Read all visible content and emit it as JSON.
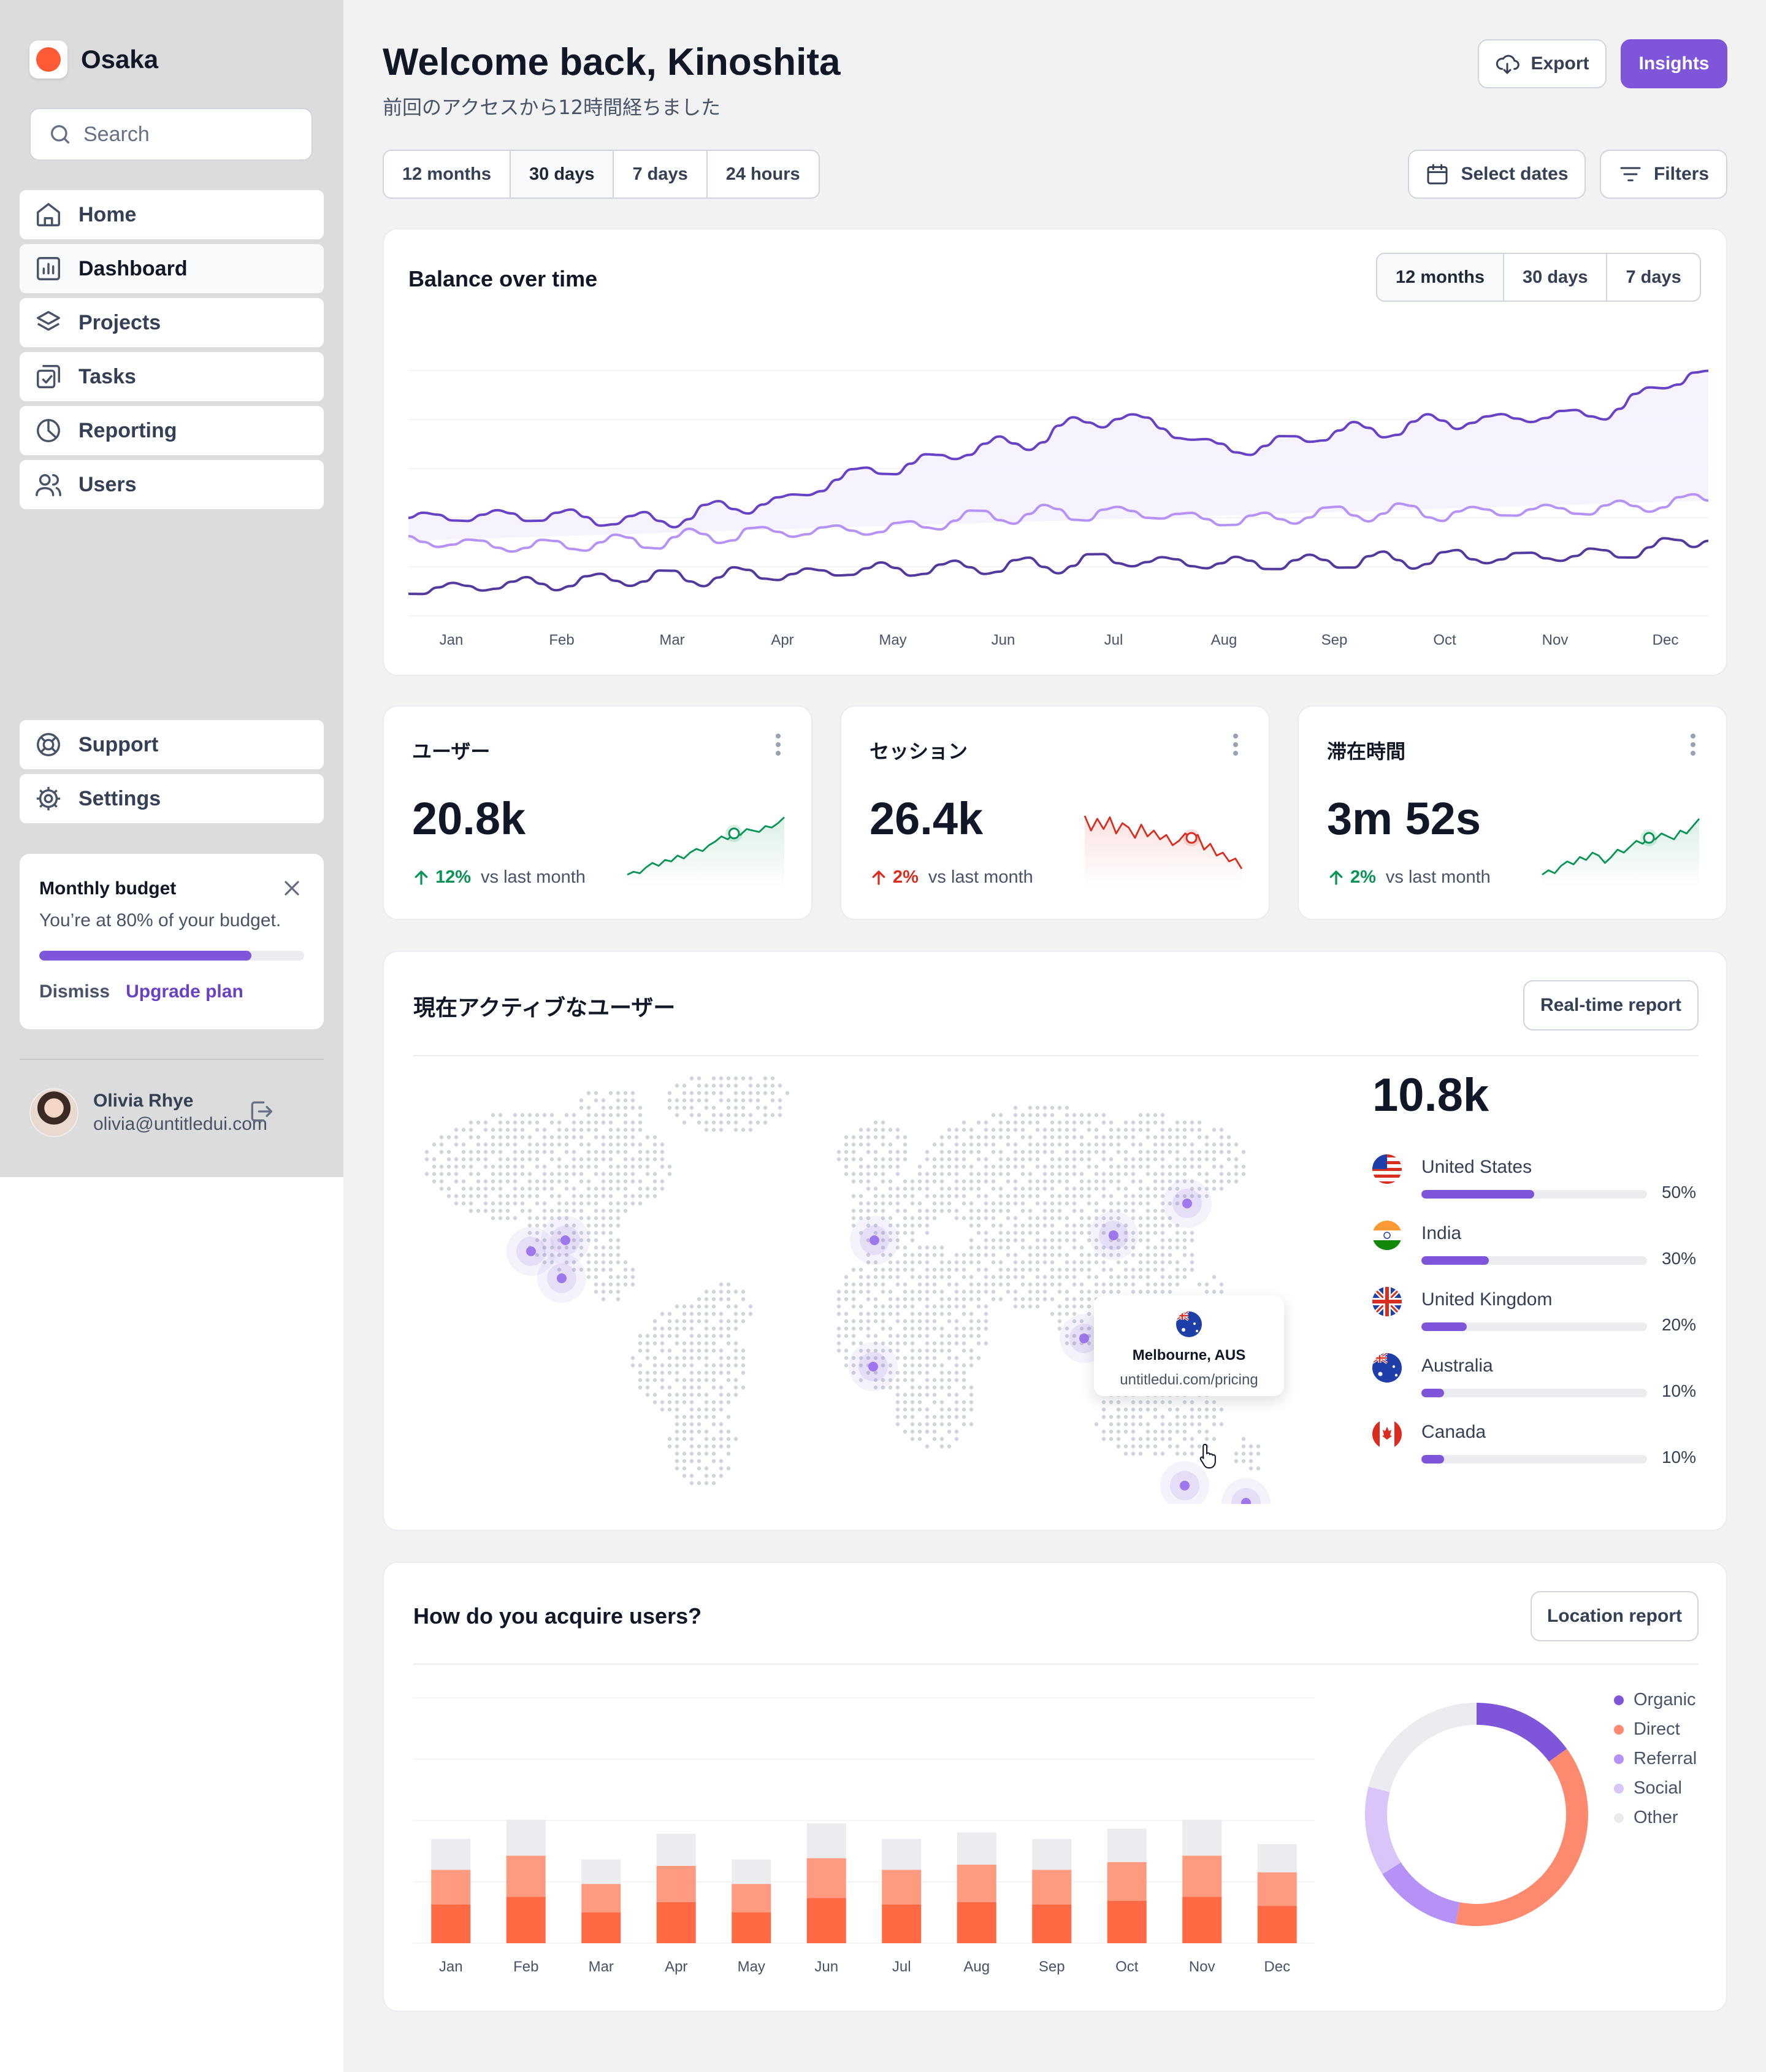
{
  "app": {
    "name": "Osaka"
  },
  "search": {
    "placeholder": "Search"
  },
  "nav": {
    "items": [
      {
        "label": "Home",
        "icon": "home-icon"
      },
      {
        "label": "Dashboard",
        "icon": "bar-chart-icon"
      },
      {
        "label": "Projects",
        "icon": "layers-icon"
      },
      {
        "label": "Tasks",
        "icon": "check-square-icon"
      },
      {
        "label": "Reporting",
        "icon": "pie-chart-icon"
      },
      {
        "label": "Users",
        "icon": "users-icon"
      }
    ],
    "footer": [
      {
        "label": "Support",
        "icon": "life-buoy-icon"
      },
      {
        "label": "Settings",
        "icon": "settings-icon"
      }
    ]
  },
  "budget": {
    "title": "Monthly budget",
    "text": "You’re at 80% of your budget.",
    "progress": 0.8,
    "dismiss": "Dismiss",
    "upgrade": "Upgrade plan"
  },
  "user": {
    "name": "Olivia Rhye",
    "email": "olivia@untitledui.com"
  },
  "header": {
    "title": "Welcome back, Kinoshita",
    "subtitle": "前回のアクセスから12時間経ちました",
    "export": "Export",
    "insights": "Insights"
  },
  "range": {
    "options": [
      "12 months",
      "30 days",
      "7 days",
      "24 hours"
    ],
    "selected": "30 days",
    "select_dates": "Select dates",
    "filters": "Filters"
  },
  "balance": {
    "title": "Balance over time",
    "ranges": [
      "12 months",
      "30 days",
      "7 days"
    ],
    "selected": "12 months"
  },
  "chart_data": [
    {
      "type": "line",
      "x": [
        "Jan",
        "Feb",
        "Mar",
        "Apr",
        "May",
        "Jun",
        "Jul",
        "Aug",
        "Sep",
        "Oct",
        "Nov",
        "Dec"
      ],
      "ylim": [
        0,
        10
      ],
      "grid": true,
      "series": [
        {
          "values": [
            3.4,
            3.5,
            3.3,
            3.9,
            5.1,
            5.9,
            6.9,
            5.8,
            6.4,
            6.8,
            7.0,
            8.5
          ],
          "color": "#6941c6"
        },
        {
          "values": [
            2.6,
            2.4,
            2.6,
            2.9,
            3.0,
            3.5,
            3.6,
            3.3,
            3.6,
            3.6,
            3.7,
            4.0
          ],
          "color": "#b692f6"
        },
        {
          "values": [
            0.9,
            1.1,
            1.3,
            1.4,
            1.6,
            1.7,
            1.9,
            1.8,
            1.9,
            2.0,
            2.1,
            2.6
          ],
          "color": "#53389e"
        }
      ]
    },
    {
      "type": "bar",
      "stacked": true,
      "categories": [
        "Jan",
        "Feb",
        "Mar",
        "Apr",
        "May",
        "Jun",
        "Jul",
        "Aug",
        "Sep",
        "Oct",
        "Nov",
        "Dec"
      ],
      "ylim": [
        0,
        100
      ],
      "grid": true,
      "series": [
        {
          "name": "Organic",
          "color": "#ff6a44",
          "values": [
            30,
            36,
            24,
            32,
            24,
            35,
            30,
            32,
            30,
            33,
            36,
            29
          ]
        },
        {
          "name": "Direct",
          "color": "#fd9a80",
          "values": [
            27,
            32,
            22,
            28,
            22,
            31,
            27,
            29,
            27,
            30,
            32,
            26
          ]
        },
        {
          "name": "Other",
          "color": "#eaecf0",
          "values": [
            24,
            28,
            19,
            25,
            19,
            27,
            24,
            25,
            24,
            26,
            28,
            22
          ]
        }
      ]
    },
    {
      "type": "pie",
      "categories": [
        "Organic",
        "Direct",
        "Referral",
        "Social",
        "Other"
      ],
      "values": [
        15,
        38,
        13,
        13,
        21
      ],
      "colors": [
        "#7f56d9",
        "#fd8a6e",
        "#b692f6",
        "#d9c5fa",
        "#eaecf0"
      ],
      "legend": "right"
    }
  ],
  "metrics": [
    {
      "title": "ユーザー",
      "value": "20.8k",
      "change": "12%",
      "trend": "up",
      "vs": "vs last month",
      "color": "#079455",
      "spark": [
        10,
        14,
        12,
        20,
        26,
        22,
        30,
        28,
        36,
        32,
        40,
        45,
        42,
        50,
        55,
        62,
        58,
        66,
        64,
        72,
        70,
        68,
        76,
        74,
        80,
        88
      ]
    },
    {
      "title": "セッション",
      "value": "26.4k",
      "change": "2%",
      "trend": "down",
      "vs": "vs last month",
      "color": "#d92d20",
      "spark": [
        90,
        70,
        86,
        72,
        88,
        66,
        80,
        74,
        60,
        78,
        62,
        70,
        58,
        64,
        50,
        56,
        66,
        60,
        64,
        44,
        52,
        36,
        40,
        28,
        32,
        18
      ]
    },
    {
      "title": "滞在時間",
      "value": "3m 52s",
      "change": "2%",
      "trend": "up",
      "vs": "vs last month",
      "color": "#079455",
      "spark": [
        10,
        16,
        12,
        22,
        28,
        24,
        34,
        30,
        40,
        36,
        26,
        34,
        44,
        40,
        48,
        56,
        52,
        60,
        58,
        66,
        62,
        58,
        70,
        66,
        76,
        86
      ]
    }
  ],
  "active_users": {
    "title": "現在アクティブなユーザー",
    "report_button": "Real-time report",
    "total": "10.8k",
    "countries": [
      {
        "name": "United States",
        "pct": "50%",
        "value": 0.5,
        "flag": "us-flag-icon"
      },
      {
        "name": "India",
        "pct": "30%",
        "value": 0.3,
        "flag": "india-flag-icon"
      },
      {
        "name": "United Kingdom",
        "pct": "20%",
        "value": 0.2,
        "flag": "uk-flag-icon"
      },
      {
        "name": "Australia",
        "pct": "10%",
        "value": 0.1,
        "flag": "australia-flag-icon"
      },
      {
        "name": "Canada",
        "pct": "10%",
        "value": 0.1,
        "flag": "canada-flag-icon"
      }
    ],
    "tooltip": {
      "city": "Melbourne, AUS",
      "url": "untitledui.com/pricing"
    }
  },
  "acquire": {
    "title": "How do you acquire users?",
    "report_button": "Location report",
    "legend": [
      {
        "label": "Organic",
        "color": "#7f56d9"
      },
      {
        "label": "Direct",
        "color": "#fd8a6e"
      },
      {
        "label": "Referral",
        "color": "#b692f6"
      },
      {
        "label": "Social",
        "color": "#d9c5fa"
      },
      {
        "label": "Other",
        "color": "#eaecf0"
      }
    ]
  }
}
